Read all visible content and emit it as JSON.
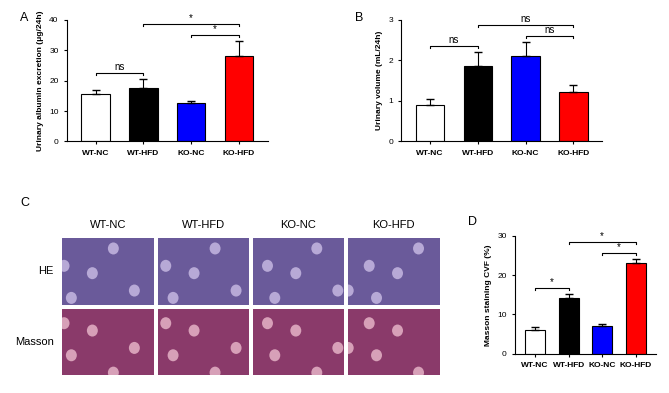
{
  "chart_data": [
    {
      "type": "bar",
      "panel": "A",
      "categories": [
        "WT-NC",
        "WT-HFD",
        "KO-NC",
        "KO-HFD"
      ],
      "values": [
        15.5,
        17.5,
        12.5,
        28.0
      ],
      "errors": [
        1.5,
        3.0,
        0.8,
        5.0
      ],
      "colors": [
        "#ffffff",
        "#000000",
        "#0000ff",
        "#ff0000"
      ],
      "y_label": "Urinary albumin excretion (μg/24h)",
      "ylim": [
        0,
        40
      ],
      "yticks": [
        0,
        10,
        20,
        30,
        40
      ],
      "comparisons": [
        {
          "between": [
            "WT-NC",
            "WT-HFD"
          ],
          "label": "ns"
        },
        {
          "between": [
            "KO-NC",
            "KO-HFD"
          ],
          "label": "*"
        },
        {
          "between": [
            "WT-HFD",
            "KO-HFD"
          ],
          "label": "*"
        }
      ]
    },
    {
      "type": "bar",
      "panel": "B",
      "categories": [
        "WT-NC",
        "WT-HFD",
        "KO-NC",
        "KO-HFD"
      ],
      "values": [
        0.9,
        1.85,
        2.1,
        1.22
      ],
      "errors": [
        0.15,
        0.35,
        0.35,
        0.18
      ],
      "colors": [
        "#ffffff",
        "#000000",
        "#0000ff",
        "#ff0000"
      ],
      "y_label": "Urinary volume (mL/24h)",
      "ylim": [
        0,
        3
      ],
      "yticks": [
        0,
        1,
        2,
        3
      ],
      "comparisons": [
        {
          "between": [
            "WT-NC",
            "WT-HFD"
          ],
          "label": "ns"
        },
        {
          "between": [
            "KO-NC",
            "KO-HFD"
          ],
          "label": "ns"
        },
        {
          "between": [
            "WT-HFD",
            "KO-HFD"
          ],
          "label": "ns"
        }
      ]
    },
    {
      "type": "bar",
      "panel": "D",
      "categories": [
        "WT-NC",
        "WT-HFD",
        "KO-NC",
        "KO-HFD"
      ],
      "values": [
        6.0,
        14.2,
        7.0,
        23.0
      ],
      "errors": [
        0.7,
        1.0,
        0.6,
        1.2
      ],
      "colors": [
        "#ffffff",
        "#000000",
        "#0000ff",
        "#ff0000"
      ],
      "y_label": "Masson staining CVF (%)",
      "ylim": [
        0,
        30
      ],
      "yticks": [
        0,
        10,
        20,
        30
      ],
      "comparisons": [
        {
          "between": [
            "WT-NC",
            "WT-HFD"
          ],
          "label": "*"
        },
        {
          "between": [
            "KO-NC",
            "KO-HFD"
          ],
          "label": "*"
        },
        {
          "between": [
            "WT-HFD",
            "KO-HFD"
          ],
          "label": "*"
        }
      ]
    }
  ],
  "image_panel": {
    "panel": "C",
    "columns": [
      "WT-NC",
      "WT-HFD",
      "KO-NC",
      "KO-HFD"
    ],
    "rows": [
      "HE",
      "Masson"
    ]
  }
}
